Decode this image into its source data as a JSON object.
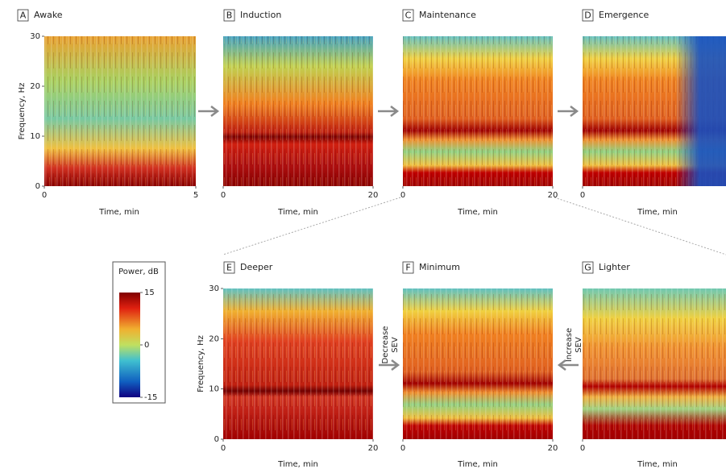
{
  "panels": [
    {
      "letter": "A",
      "title": "Awake",
      "xlabel": "Time, min",
      "ylabel": "Frequency, Hz",
      "xlim": [
        0,
        5
      ],
      "xticks": [
        0,
        5
      ],
      "ylim": [
        0,
        30
      ],
      "yticks": [
        0,
        10,
        20,
        30
      ]
    },
    {
      "letter": "B",
      "title": "Induction",
      "xlabel": "Time, min",
      "xlim": [
        0,
        20
      ],
      "xticks": [
        0,
        20
      ]
    },
    {
      "letter": "C",
      "title": "Maintenance",
      "xlabel": "Time, min",
      "xlim": [
        0,
        20
      ],
      "xticks": [
        0,
        20
      ]
    },
    {
      "letter": "D",
      "title": "Emergence",
      "xlabel": "Time, min",
      "xlim": [
        0,
        20
      ],
      "xticks": [
        0
      ]
    },
    {
      "letter": "E",
      "title": "Deeper",
      "xlabel": "Time, min",
      "ylabel": "Frequency, Hz",
      "xlim": [
        0,
        20
      ],
      "xticks": [
        0,
        20
      ],
      "ylim": [
        0,
        30
      ],
      "yticks": [
        0,
        10,
        20,
        30
      ]
    },
    {
      "letter": "F",
      "title": "Minimum",
      "xlabel": "Time, min",
      "xlim": [
        0,
        20
      ],
      "xticks": [
        0,
        20
      ]
    },
    {
      "letter": "G",
      "title": "Lighter",
      "xlabel": "Time, min",
      "xlim": [
        0,
        20
      ],
      "xticks": [
        0
      ]
    }
  ],
  "colorbar": {
    "title": "Power, dB",
    "lim": [
      -15,
      15
    ],
    "ticks": [
      15,
      0,
      -15
    ]
  },
  "arrows": [
    {
      "label": [
        "Decrease",
        "SEV"
      ]
    },
    {
      "label": [
        "Increase",
        "SEV"
      ]
    }
  ]
}
